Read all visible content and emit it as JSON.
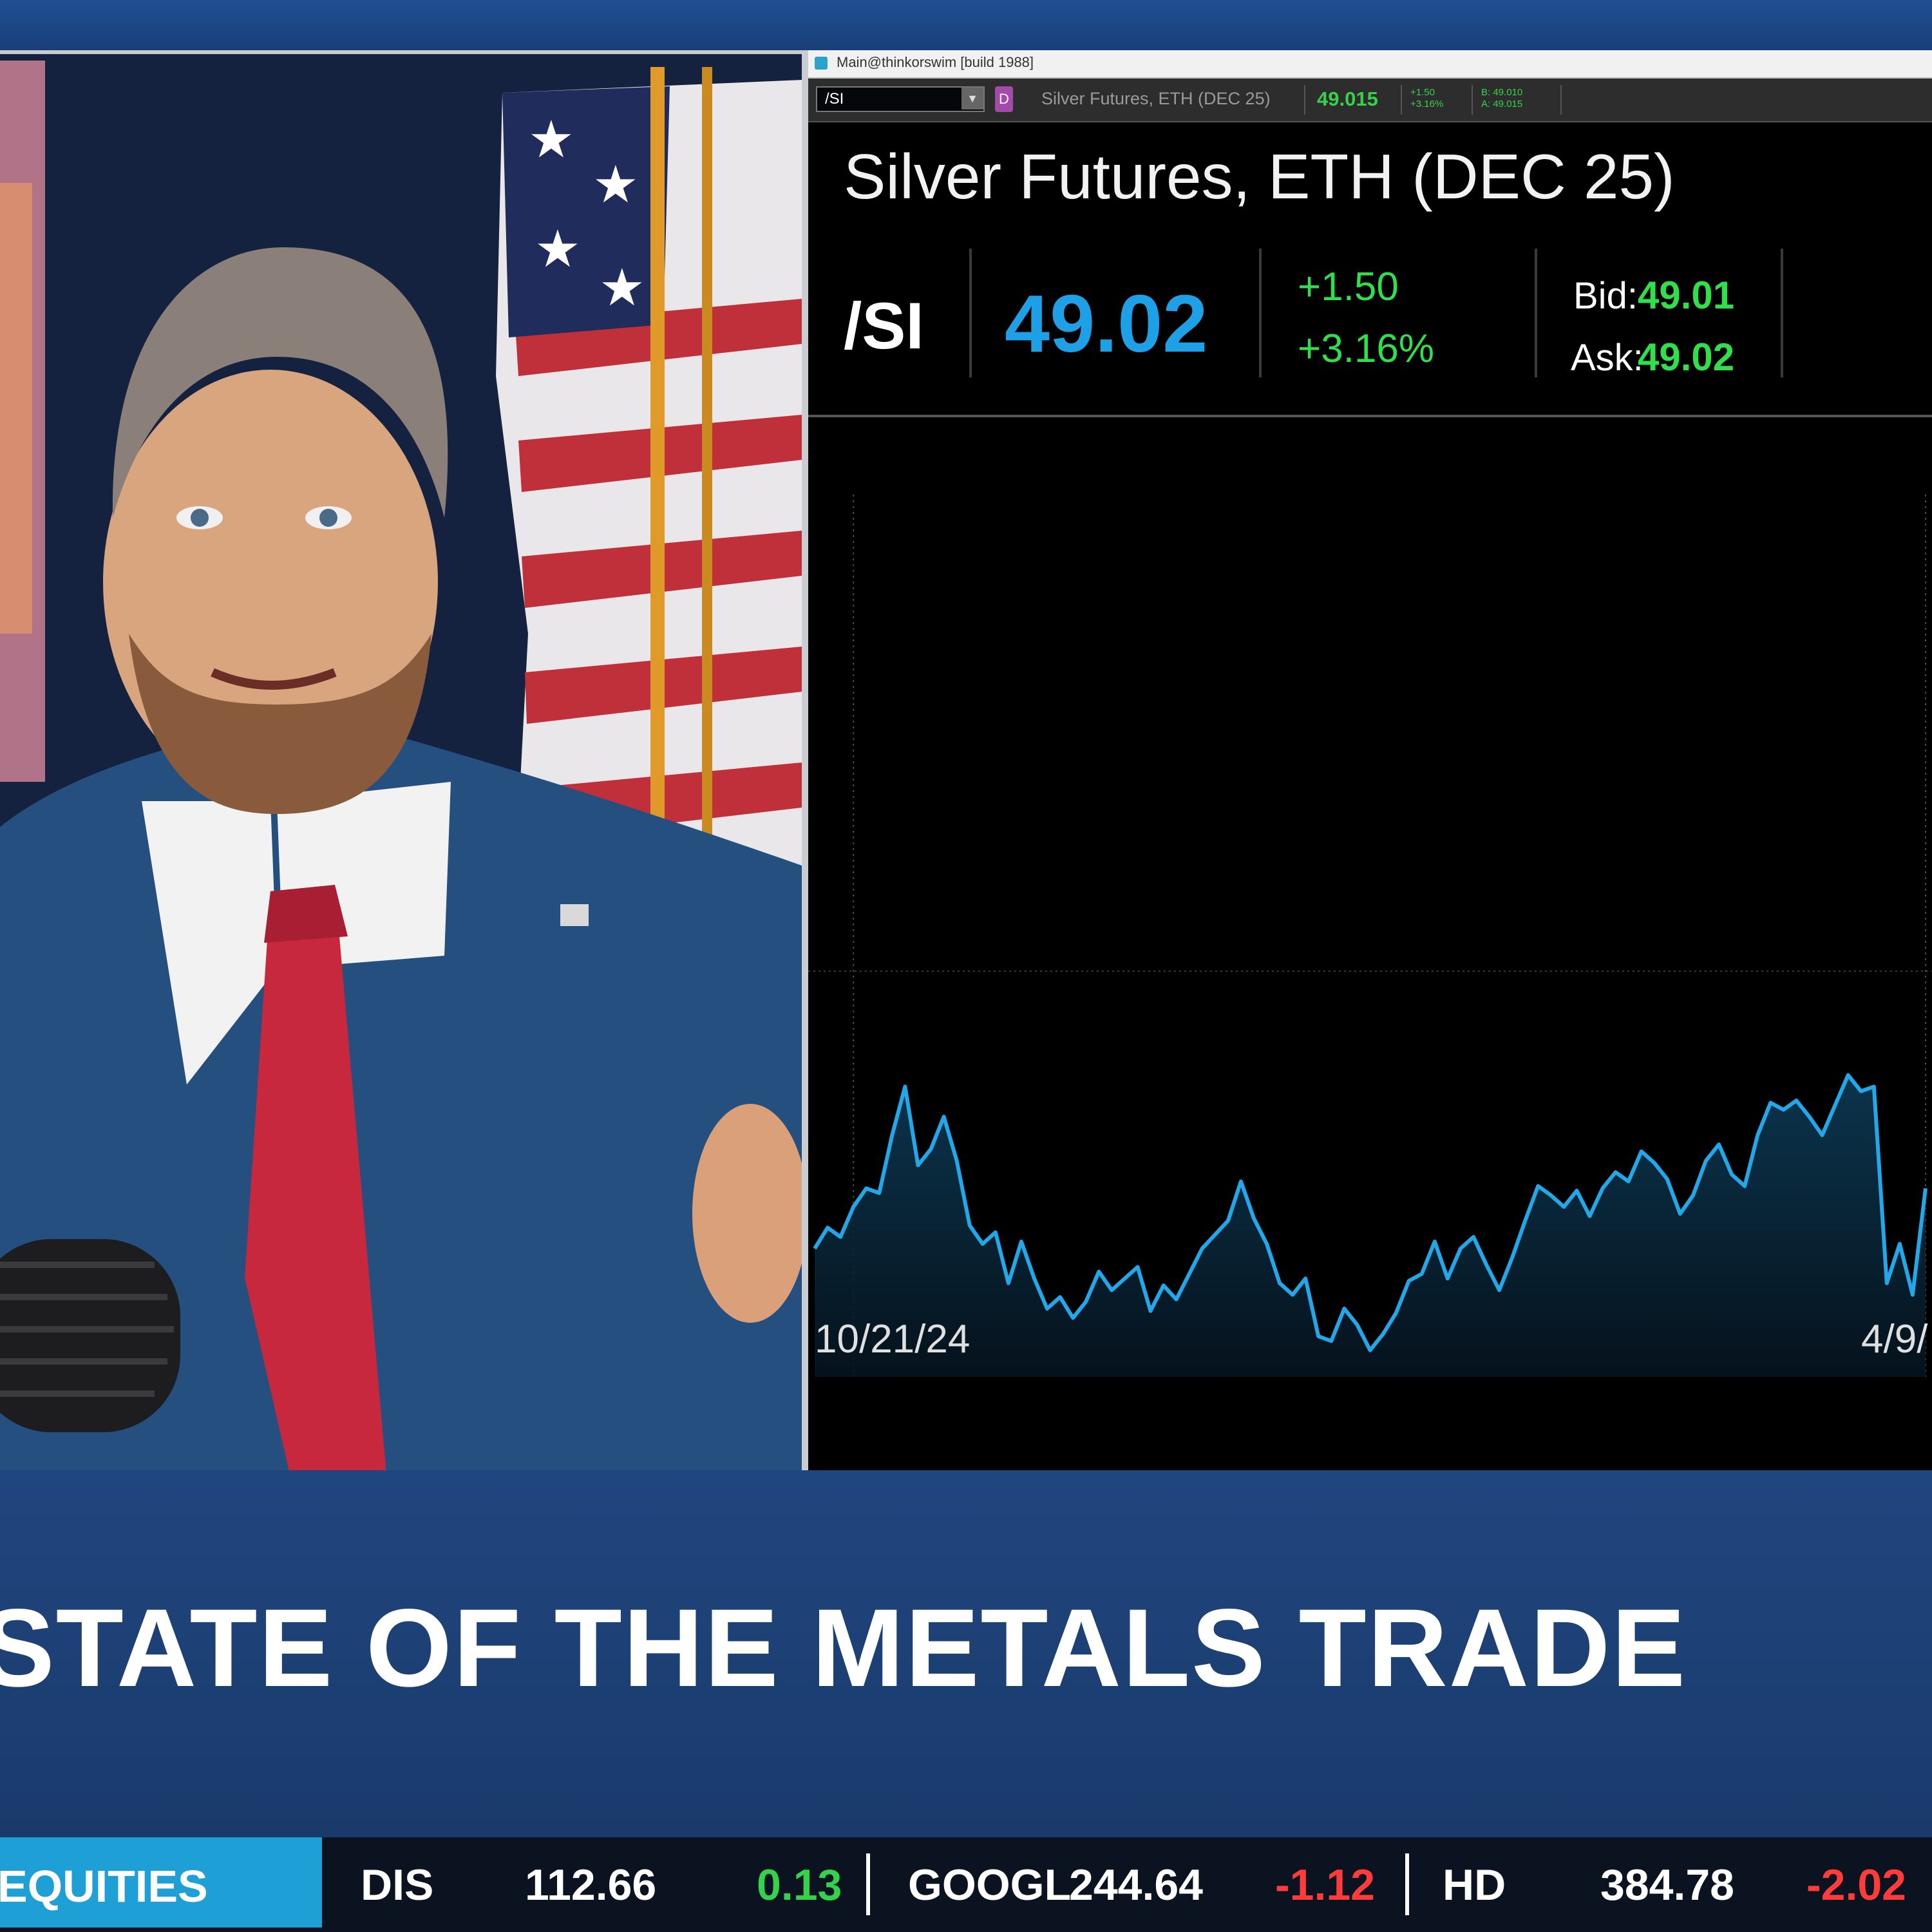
{
  "window": {
    "title": "Main@thinkorswim [build 1988]"
  },
  "toolbar": {
    "symbol_input": "/SI",
    "instrument_name": "Silver Futures, ETH (DEC 25)",
    "price": "49.015",
    "change_small": "+1.50",
    "pct_small": "+3.16%",
    "bid_small": "B: 49.010",
    "ask_small": "A: 49.015"
  },
  "quote": {
    "title": "Silver Futures, ETH (DEC 25)",
    "symbol": "/SI",
    "last": "49.02",
    "change": "+1.50",
    "pct_change": "+3.16%",
    "bid_label": "Bid:",
    "bid": "49.01",
    "ask_label": "Ask:",
    "ask": "49.02"
  },
  "chart_data": {
    "type": "area",
    "title": "",
    "xlabel": "",
    "ylabel": "",
    "x_tick_labels": [
      "10/21/24",
      "4/9/"
    ],
    "grid": "vertical date lines, horizontal midline",
    "color": "#22a8e8",
    "values": [
      28.9,
      29.8,
      29.4,
      30.7,
      31.5,
      31.3,
      33.8,
      35.9,
      32.5,
      33.2,
      34.6,
      32.7,
      29.9,
      29.1,
      29.6,
      27.4,
      29.2,
      27.6,
      26.3,
      26.8,
      25.9,
      26.6,
      27.9,
      27.1,
      27.6,
      28.1,
      26.2,
      27.3,
      26.7,
      27.8,
      28.9,
      29.5,
      30.1,
      31.8,
      30.2,
      29.1,
      27.4,
      26.9,
      27.6,
      25.1,
      24.9,
      26.3,
      25.6,
      24.5,
      25.2,
      26.1,
      27.5,
      27.8,
      29.2,
      27.6,
      28.9,
      29.4,
      28.2,
      27.1,
      28.5,
      30.1,
      31.6,
      31.2,
      30.7,
      31.4,
      30.3,
      31.5,
      32.2,
      31.8,
      33.1,
      32.6,
      31.9,
      30.4,
      31.2,
      32.7,
      33.4,
      32.1,
      31.6,
      33.8,
      35.2,
      34.9,
      35.3,
      34.6,
      33.8,
      35.1,
      36.4,
      35.7,
      35.9,
      27.4,
      29.1,
      26.9,
      31.5
    ]
  },
  "headline": "STATE OF THE METALS TRADE",
  "ticker": {
    "tag": "EQUITIES",
    "items": [
      {
        "symbol": "DIS",
        "price": "112.66",
        "change": "0.13"
      },
      {
        "symbol": "GOOGL",
        "price": "244.64",
        "change": "-1.12"
      },
      {
        "symbol": "HD",
        "price": "384.78",
        "change": "-2.02"
      }
    ]
  }
}
